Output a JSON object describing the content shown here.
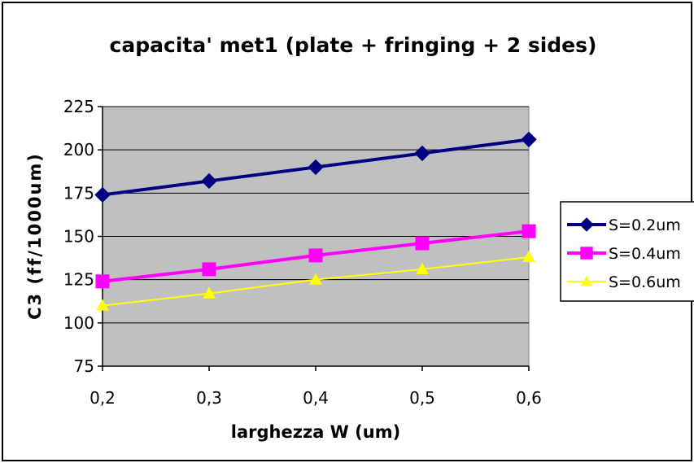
{
  "chart_data": {
    "type": "line",
    "title": "capacita' met1 (plate + fringing + 2 sides)",
    "xlabel": "larghezza W (um)",
    "ylabel": "C3 (ff/1000um)",
    "categories": [
      "0,2",
      "0,3",
      "0,4",
      "0,5",
      "0,6"
    ],
    "ylim": [
      75,
      225
    ],
    "yticks": [
      75,
      100,
      125,
      150,
      175,
      200,
      225
    ],
    "grid": true,
    "legend_position": "right",
    "series": [
      {
        "name": "S=0.2um",
        "values": [
          174,
          182,
          190,
          198,
          206
        ],
        "color": "#000080",
        "marker": "diamond",
        "width": 4
      },
      {
        "name": "S=0.4um",
        "values": [
          124,
          131,
          139,
          146,
          153
        ],
        "color": "#ff00ff",
        "marker": "square",
        "width": 4
      },
      {
        "name": "S=0.6um",
        "values": [
          110,
          117,
          125,
          131,
          138
        ],
        "color": "#ffff00",
        "marker": "triangle",
        "width": 2
      }
    ]
  }
}
